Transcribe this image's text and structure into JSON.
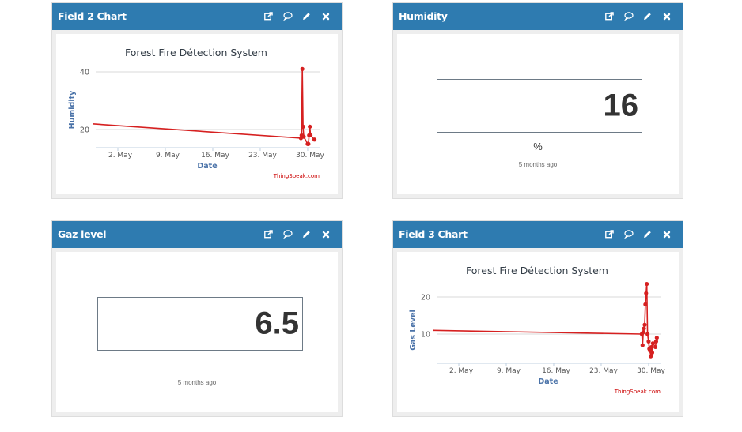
{
  "widgets": [
    {
      "title": "Field 2 Chart",
      "type": "chart",
      "icons": [
        "external-link-icon",
        "comment-icon",
        "pencil-icon",
        "close-icon"
      ]
    },
    {
      "title": "Humidity",
      "type": "numeric-display",
      "value": "16",
      "units": "%",
      "updated": "5 months ago",
      "icons": [
        "external-link-icon",
        "comment-icon",
        "pencil-icon",
        "close-icon"
      ]
    },
    {
      "title": "Gaz level",
      "type": "numeric-display",
      "value": "6.5",
      "units": "",
      "updated": "5 months ago",
      "icons": [
        "external-link-icon",
        "comment-icon",
        "pencil-icon",
        "close-icon"
      ]
    },
    {
      "title": "Field 3 Chart",
      "type": "chart",
      "icons": [
        "external-link-icon",
        "comment-icon",
        "pencil-icon",
        "close-icon"
      ]
    }
  ],
  "colors": {
    "header_bg": "#2e7bb0",
    "series": "#d62020",
    "axis_title": "#4a72a8",
    "credit": "#cc0000"
  },
  "chart_data": [
    {
      "type": "line",
      "title": "Forest Fire Détection System",
      "xlabel": "Date",
      "ylabel": "Humidity",
      "x_ticks": [
        "2. May",
        "9. May",
        "16. May",
        "23. May",
        "30. May"
      ],
      "y_ticks": [
        20,
        40
      ],
      "ylim": [
        14,
        42
      ],
      "credit": "ThingSpeak.com",
      "series": [
        {
          "name": "Humidity",
          "x": [
            "Apr 27",
            "Apr 27",
            "Apr 27",
            "Apr 28",
            "May 29",
            "May 29",
            "May 29",
            "May 29",
            "May 29",
            "May 30",
            "May 30",
            "May 30",
            "May 30",
            "May 30",
            "May 31"
          ],
          "values": [
            16,
            17,
            16.5,
            22,
            17,
            18,
            41,
            21,
            17.5,
            15,
            15,
            18,
            21,
            18,
            16.5
          ]
        }
      ]
    },
    {
      "type": "line",
      "title": "Forest Fire Détection System",
      "xlabel": "Date",
      "ylabel": "Gas Level",
      "x_ticks": [
        "2. May",
        "9. May",
        "16. May",
        "23. May",
        "30. May"
      ],
      "y_ticks": [
        10,
        20
      ],
      "ylim": [
        2,
        24
      ],
      "credit": "ThingSpeak.com",
      "series": [
        {
          "name": "Gas Level",
          "x": [
            "Apr 27",
            "Apr 27",
            "Apr 27",
            "Apr 27",
            "Apr 27",
            "Apr 27",
            "Apr 27",
            "Apr 27",
            "Apr 28",
            "May 29",
            "May 29",
            "May 29",
            "May 29",
            "May 29",
            "May 29",
            "May 29",
            "May 29",
            "May 29",
            "May 30",
            "May 30",
            "May 30",
            "May 30",
            "May 30",
            "May 30",
            "May 30",
            "May 31",
            "May 31",
            "May 31"
          ],
          "values": [
            14,
            13.5,
            12,
            11.5,
            11,
            9,
            8.5,
            7,
            11,
            10,
            7,
            10.5,
            11.5,
            12.5,
            18,
            21,
            23.5,
            10,
            8,
            6,
            5.5,
            4,
            6.5,
            5,
            7.5,
            6.5,
            8,
            9
          ]
        }
      ]
    }
  ]
}
